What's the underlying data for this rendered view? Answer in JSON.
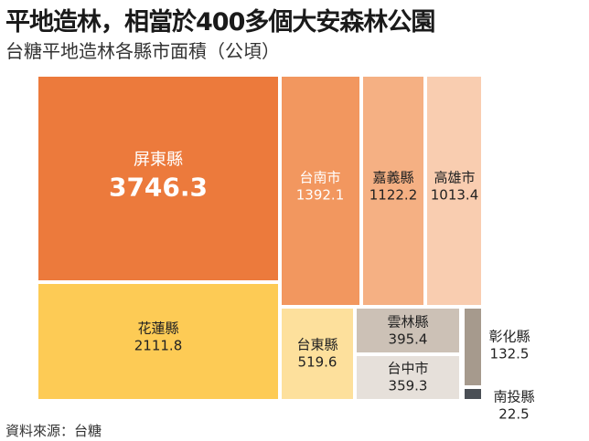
{
  "header": {
    "title": "平地造林，相當於400多個大安森林公園",
    "subtitle": "台糖平地造林各縣市面積（公頃）"
  },
  "footer": {
    "source": "資料來源：台糖"
  },
  "chart_data": {
    "type": "treemap",
    "title": "平地造林，相當於400多個大安森林公園",
    "subtitle": "台糖平地造林各縣市面積（公頃）",
    "unit": "公頃",
    "items": [
      {
        "name": "屏東縣",
        "value": 3746.3,
        "color": "#ec7a3c"
      },
      {
        "name": "花蓮縣",
        "value": 2111.8,
        "color": "#fdcb55"
      },
      {
        "name": "台南市",
        "value": 1392.1,
        "color": "#f2975f"
      },
      {
        "name": "嘉義縣",
        "value": 1122.2,
        "color": "#f5b083"
      },
      {
        "name": "高雄市",
        "value": 1013.4,
        "color": "#f9cdb0"
      },
      {
        "name": "台東縣",
        "value": 519.6,
        "color": "#fde09c"
      },
      {
        "name": "雲林縣",
        "value": 395.4,
        "color": "#ccc1b6"
      },
      {
        "name": "台中市",
        "value": 359.3,
        "color": "#e6e0da"
      },
      {
        "name": "彰化縣",
        "value": 132.5,
        "color": "#a69a8d"
      },
      {
        "name": "南投縣",
        "value": 22.5,
        "color": "#4a4f55"
      }
    ]
  }
}
